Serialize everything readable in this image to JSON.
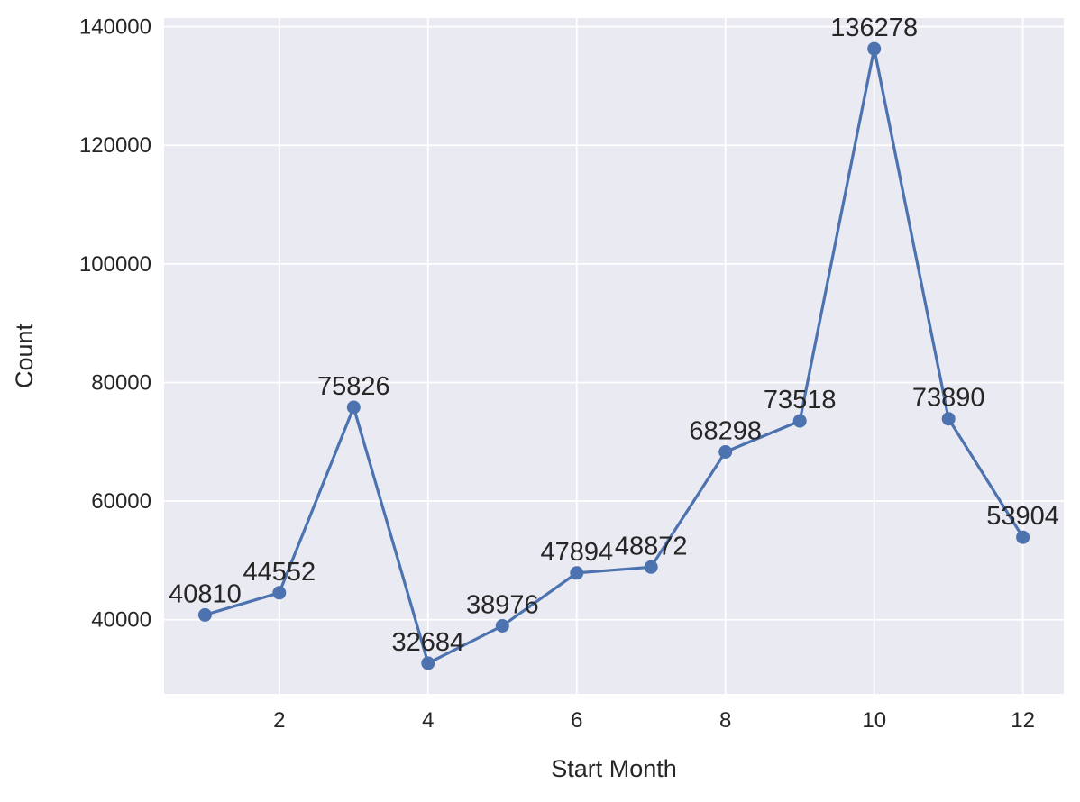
{
  "chart_data": {
    "type": "line",
    "x": [
      1,
      2,
      3,
      4,
      5,
      6,
      7,
      8,
      9,
      10,
      11,
      12
    ],
    "values": [
      40810,
      44552,
      75826,
      32684,
      38976,
      47894,
      48872,
      68298,
      73518,
      136278,
      73890,
      53904
    ],
    "point_labels": [
      "40810",
      "44552",
      "75826",
      "32684",
      "38976",
      "47894",
      "48872",
      "68298",
      "73518",
      "136278",
      "73890",
      "53904"
    ],
    "title": "",
    "xlabel": "Start Month",
    "ylabel": "Count",
    "xlim": [
      0.45,
      12.55
    ],
    "ylim": [
      27500,
      141460
    ],
    "xticks": [
      2,
      4,
      6,
      8,
      10,
      12
    ],
    "yticks": [
      40000,
      60000,
      80000,
      100000,
      120000,
      140000
    ],
    "grid": true,
    "legend": "none",
    "colors": {
      "line": "#4c72b0",
      "marker": "#4c72b0",
      "plot_bg": "#eaeaf2",
      "grid_line": "#ffffff",
      "text": "#262626",
      "figure_bg": "#ffffff"
    }
  }
}
